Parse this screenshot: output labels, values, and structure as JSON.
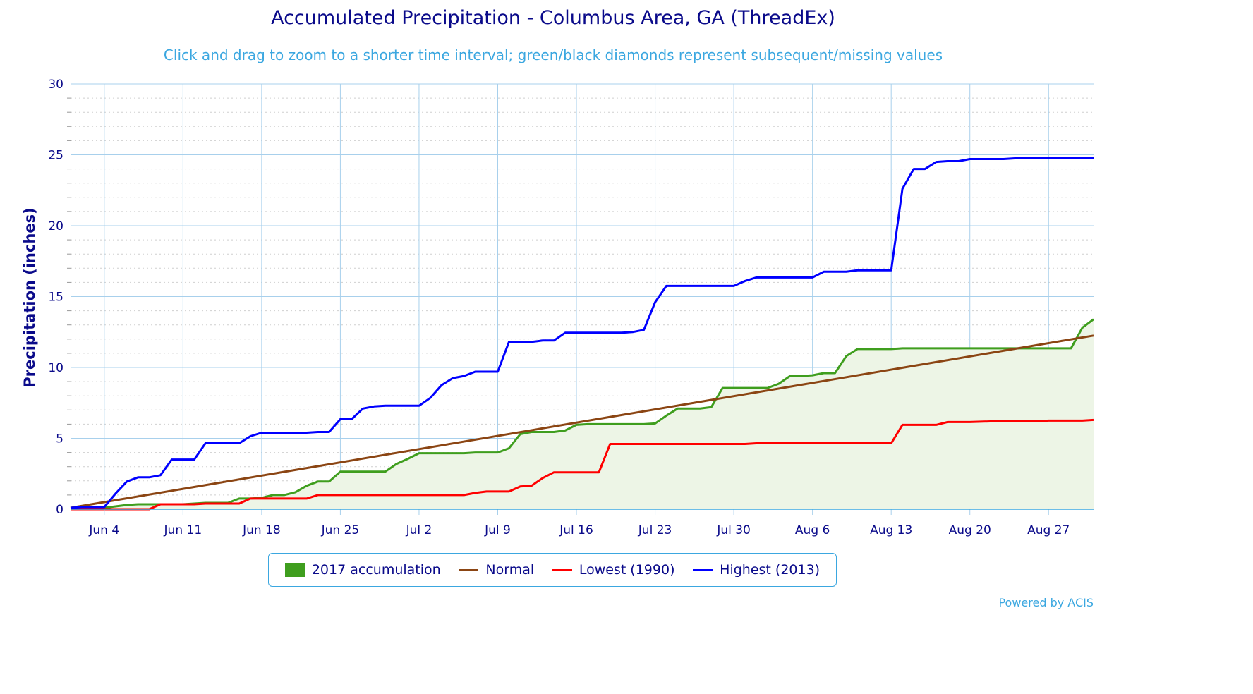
{
  "chart_data": {
    "type": "line",
    "title": "Accumulated Precipitation - Columbus Area, GA (ThreadEx)",
    "subtitle": "Click and drag to zoom to a shorter time interval; green/black diamonds represent subsequent/missing values",
    "ylabel": "Precipitation (inches)",
    "xlabel": "",
    "ylim": [
      0,
      30
    ],
    "yticks": [
      "0",
      "5",
      "10",
      "15",
      "20",
      "25",
      "30"
    ],
    "xlim_day": [
      1,
      92
    ],
    "xticks": [
      {
        "label": "Jun 4",
        "day": 4
      },
      {
        "label": "Jun 11",
        "day": 11
      },
      {
        "label": "Jun 18",
        "day": 18
      },
      {
        "label": "Jun 25",
        "day": 25
      },
      {
        "label": "Jul 2",
        "day": 32
      },
      {
        "label": "Jul 9",
        "day": 39
      },
      {
        "label": "Jul 16",
        "day": 46
      },
      {
        "label": "Jul 23",
        "day": 53
      },
      {
        "label": "Jul 30",
        "day": 60
      },
      {
        "label": "Aug 6",
        "day": 67
      },
      {
        "label": "Aug 13",
        "day": 74
      },
      {
        "label": "Aug 20",
        "day": 81
      },
      {
        "label": "Aug 27",
        "day": 88
      }
    ],
    "grid": true,
    "legend_position": "bottom-center",
    "series": [
      {
        "name": "2017 accumulation",
        "style": "area",
        "color": "#3f9e1e",
        "fill": "#edf5e6",
        "points": [
          [
            1,
            0.1
          ],
          [
            2,
            0.1
          ],
          [
            4,
            0.1
          ],
          [
            5,
            0.2
          ],
          [
            6,
            0.3
          ],
          [
            7,
            0.35
          ],
          [
            8,
            0.35
          ],
          [
            9,
            0.35
          ],
          [
            10,
            0.35
          ],
          [
            11,
            0.35
          ],
          [
            12,
            0.4
          ],
          [
            13,
            0.45
          ],
          [
            14,
            0.45
          ],
          [
            15,
            0.45
          ],
          [
            16,
            0.75
          ],
          [
            17,
            0.75
          ],
          [
            18,
            0.8
          ],
          [
            19,
            1.0
          ],
          [
            20,
            1.0
          ],
          [
            21,
            1.2
          ],
          [
            22,
            1.65
          ],
          [
            23,
            1.95
          ],
          [
            24,
            1.95
          ],
          [
            25,
            2.65
          ],
          [
            26,
            2.65
          ],
          [
            27,
            2.65
          ],
          [
            28,
            2.65
          ],
          [
            29,
            2.65
          ],
          [
            30,
            3.2
          ],
          [
            31,
            3.55
          ],
          [
            32,
            3.95
          ],
          [
            33,
            3.95
          ],
          [
            34,
            3.95
          ],
          [
            35,
            3.95
          ],
          [
            36,
            3.95
          ],
          [
            37,
            4.0
          ],
          [
            38,
            4.0
          ],
          [
            39,
            4.0
          ],
          [
            40,
            4.3
          ],
          [
            41,
            5.3
          ],
          [
            42,
            5.45
          ],
          [
            43,
            5.45
          ],
          [
            44,
            5.45
          ],
          [
            45,
            5.55
          ],
          [
            46,
            5.95
          ],
          [
            47,
            6.0
          ],
          [
            48,
            6.0
          ],
          [
            49,
            6.0
          ],
          [
            50,
            6.0
          ],
          [
            51,
            6.0
          ],
          [
            52,
            6.0
          ],
          [
            53,
            6.05
          ],
          [
            54,
            6.6
          ],
          [
            55,
            7.1
          ],
          [
            56,
            7.1
          ],
          [
            57,
            7.1
          ],
          [
            58,
            7.2
          ],
          [
            59,
            8.55
          ],
          [
            60,
            8.55
          ],
          [
            61,
            8.55
          ],
          [
            62,
            8.55
          ],
          [
            63,
            8.55
          ],
          [
            64,
            8.85
          ],
          [
            65,
            9.4
          ],
          [
            66,
            9.4
          ],
          [
            67,
            9.45
          ],
          [
            68,
            9.6
          ],
          [
            69,
            9.6
          ],
          [
            70,
            10.8
          ],
          [
            71,
            11.3
          ],
          [
            72,
            11.3
          ],
          [
            73,
            11.3
          ],
          [
            74,
            11.3
          ],
          [
            75,
            11.35
          ],
          [
            76,
            11.35
          ],
          [
            77,
            11.35
          ],
          [
            78,
            11.35
          ],
          [
            79,
            11.35
          ],
          [
            80,
            11.35
          ],
          [
            81,
            11.35
          ],
          [
            82,
            11.35
          ],
          [
            83,
            11.35
          ],
          [
            84,
            11.35
          ],
          [
            85,
            11.35
          ],
          [
            86,
            11.35
          ],
          [
            87,
            11.35
          ],
          [
            88,
            11.35
          ],
          [
            89,
            11.35
          ],
          [
            90,
            11.35
          ],
          [
            91,
            12.8
          ],
          [
            92,
            13.4
          ]
        ]
      },
      {
        "name": "Normal",
        "style": "line",
        "color": "#8b4513",
        "points": [
          [
            1,
            0.1
          ],
          [
            92,
            12.25
          ]
        ]
      },
      {
        "name": "Lowest (1990)",
        "style": "line",
        "color": "#ff0000",
        "points": [
          [
            1,
            0.0
          ],
          [
            8,
            0.0
          ],
          [
            9,
            0.35
          ],
          [
            10,
            0.35
          ],
          [
            11,
            0.35
          ],
          [
            12,
            0.35
          ],
          [
            13,
            0.4
          ],
          [
            14,
            0.4
          ],
          [
            15,
            0.4
          ],
          [
            16,
            0.4
          ],
          [
            17,
            0.75
          ],
          [
            18,
            0.75
          ],
          [
            19,
            0.75
          ],
          [
            20,
            0.75
          ],
          [
            21,
            0.75
          ],
          [
            22,
            0.75
          ],
          [
            23,
            1.0
          ],
          [
            24,
            1.0
          ],
          [
            25,
            1.0
          ],
          [
            30,
            1.0
          ],
          [
            35,
            1.0
          ],
          [
            36,
            1.0
          ],
          [
            37,
            1.15
          ],
          [
            38,
            1.25
          ],
          [
            39,
            1.25
          ],
          [
            40,
            1.25
          ],
          [
            41,
            1.6
          ],
          [
            42,
            1.65
          ],
          [
            43,
            2.2
          ],
          [
            44,
            2.6
          ],
          [
            45,
            2.6
          ],
          [
            46,
            2.6
          ],
          [
            47,
            2.6
          ],
          [
            48,
            2.6
          ],
          [
            49,
            4.6
          ],
          [
            50,
            4.6
          ],
          [
            55,
            4.6
          ],
          [
            60,
            4.6
          ],
          [
            61,
            4.6
          ],
          [
            62,
            4.65
          ],
          [
            70,
            4.65
          ],
          [
            74,
            4.65
          ],
          [
            75,
            5.95
          ],
          [
            77,
            5.95
          ],
          [
            78,
            5.95
          ],
          [
            79,
            6.15
          ],
          [
            81,
            6.15
          ],
          [
            83,
            6.2
          ],
          [
            87,
            6.2
          ],
          [
            88,
            6.25
          ],
          [
            91,
            6.25
          ],
          [
            92,
            6.3
          ]
        ]
      },
      {
        "name": "Highest (2013)",
        "style": "line",
        "color": "#0000ff",
        "points": [
          [
            1,
            0.1
          ],
          [
            2,
            0.15
          ],
          [
            4,
            0.15
          ],
          [
            5,
            1.1
          ],
          [
            6,
            1.95
          ],
          [
            7,
            2.25
          ],
          [
            8,
            2.25
          ],
          [
            9,
            2.4
          ],
          [
            10,
            3.5
          ],
          [
            11,
            3.5
          ],
          [
            12,
            3.5
          ],
          [
            13,
            4.65
          ],
          [
            14,
            4.65
          ],
          [
            15,
            4.65
          ],
          [
            16,
            4.65
          ],
          [
            17,
            5.15
          ],
          [
            18,
            5.4
          ],
          [
            19,
            5.4
          ],
          [
            20,
            5.4
          ],
          [
            21,
            5.4
          ],
          [
            22,
            5.4
          ],
          [
            23,
            5.45
          ],
          [
            24,
            5.45
          ],
          [
            25,
            6.35
          ],
          [
            26,
            6.35
          ],
          [
            27,
            7.1
          ],
          [
            28,
            7.25
          ],
          [
            29,
            7.3
          ],
          [
            30,
            7.3
          ],
          [
            31,
            7.3
          ],
          [
            32,
            7.3
          ],
          [
            33,
            7.85
          ],
          [
            34,
            8.75
          ],
          [
            35,
            9.25
          ],
          [
            36,
            9.4
          ],
          [
            37,
            9.7
          ],
          [
            38,
            9.7
          ],
          [
            39,
            9.7
          ],
          [
            40,
            11.8
          ],
          [
            41,
            11.8
          ],
          [
            42,
            11.8
          ],
          [
            43,
            11.9
          ],
          [
            44,
            11.9
          ],
          [
            45,
            12.45
          ],
          [
            46,
            12.45
          ],
          [
            47,
            12.45
          ],
          [
            48,
            12.45
          ],
          [
            49,
            12.45
          ],
          [
            50,
            12.45
          ],
          [
            51,
            12.5
          ],
          [
            52,
            12.65
          ],
          [
            53,
            14.6
          ],
          [
            54,
            15.75
          ],
          [
            55,
            15.75
          ],
          [
            60,
            15.75
          ],
          [
            61,
            16.1
          ],
          [
            62,
            16.35
          ],
          [
            63,
            16.35
          ],
          [
            66,
            16.35
          ],
          [
            67,
            16.35
          ],
          [
            68,
            16.75
          ],
          [
            69,
            16.75
          ],
          [
            70,
            16.75
          ],
          [
            71,
            16.85
          ],
          [
            72,
            16.85
          ],
          [
            73,
            16.85
          ],
          [
            74,
            16.85
          ],
          [
            75,
            22.6
          ],
          [
            76,
            24.0
          ],
          [
            77,
            24.0
          ],
          [
            78,
            24.5
          ],
          [
            79,
            24.55
          ],
          [
            80,
            24.55
          ],
          [
            81,
            24.7
          ],
          [
            84,
            24.7
          ],
          [
            85,
            24.75
          ],
          [
            90,
            24.75
          ],
          [
            91,
            24.8
          ],
          [
            92,
            24.8
          ]
        ]
      }
    ]
  },
  "credit": "Powered by ACIS"
}
